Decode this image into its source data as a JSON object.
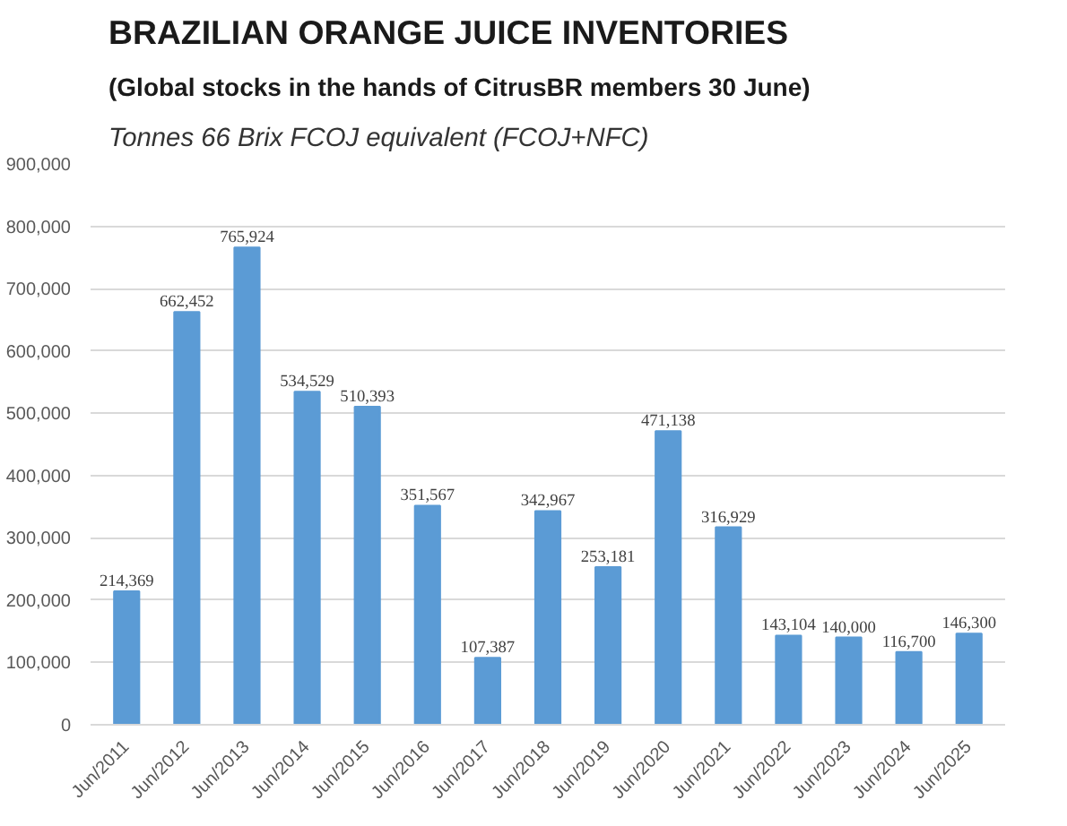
{
  "chart_data": {
    "type": "bar",
    "title": "BRAZILIAN ORANGE JUICE INVENTORIES",
    "subtitle": "(Global stocks in the hands of CitrusBR members 30 June)",
    "annotations": [
      "Tonnes 66 Brix FCOJ equivalent (FCOJ+NFC)"
    ],
    "categories": [
      "Jun/2011",
      "Jun/2012",
      "Jun/2013",
      "Jun/2014",
      "Jun/2015",
      "Jun/2016",
      "Jun/2017",
      "Jun/2018",
      "Jun/2019",
      "Jun/2020",
      "Jun/2021",
      "Jun/2022",
      "Jun/2023",
      "Jun/2024",
      "Jun/2025"
    ],
    "values": [
      214369,
      662452,
      765924,
      534529,
      510393,
      351567,
      107387,
      342967,
      253181,
      471138,
      316929,
      143104,
      140000,
      116700,
      146300
    ],
    "value_labels": [
      "214,369",
      "662,452",
      "765,924",
      "534,529",
      "510,393",
      "351,567",
      "107,387",
      "342,967",
      "253,181",
      "471,138",
      "316,929",
      "143,104",
      "140,000",
      "116,700",
      "146,300"
    ],
    "color": "#5b9bd5",
    "ylim": [
      0,
      900000
    ],
    "yticks": [
      {
        "value": 0,
        "label": "0"
      },
      {
        "value": 100000,
        "label": "100,000"
      },
      {
        "value": 200000,
        "label": "200,000"
      },
      {
        "value": 300000,
        "label": "300,000"
      },
      {
        "value": 400000,
        "label": "400,000"
      },
      {
        "value": 500000,
        "label": "500,000"
      },
      {
        "value": 600000,
        "label": "600,000"
      },
      {
        "value": 700000,
        "label": "700,000"
      },
      {
        "value": 800000,
        "label": "800,000"
      },
      {
        "value": 900000,
        "label": "900,000"
      }
    ],
    "grid": "y"
  }
}
